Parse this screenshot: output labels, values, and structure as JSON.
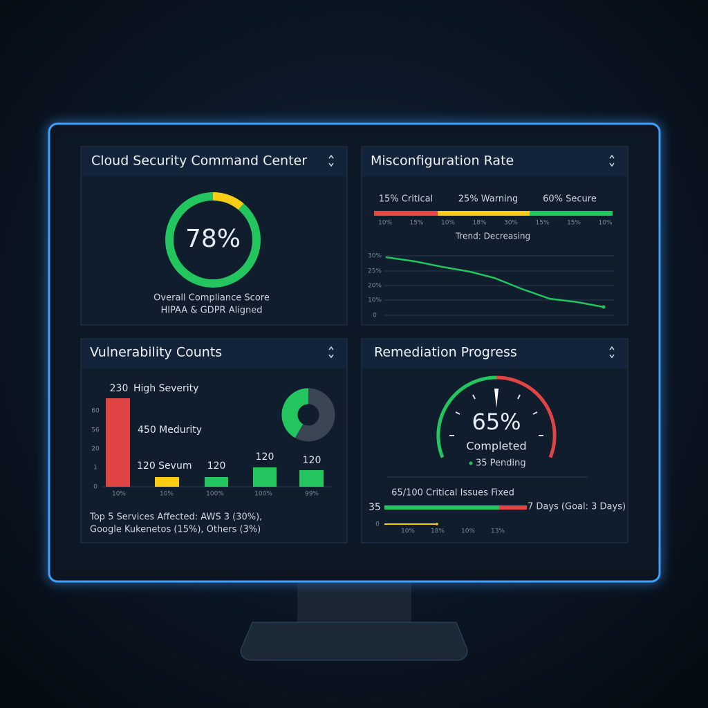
{
  "compliance": {
    "title": "Cloud Security Command Center",
    "score": "78%",
    "caption": [
      "Overall Compliance Score",
      "HIPAA & GDPR Aligned"
    ]
  },
  "misconfiguration": {
    "title": "Misconfiguration Rate",
    "segments": [
      "15% Critical",
      "25% Warning",
      "60% Secure"
    ],
    "scale": [
      "10%",
      "15%",
      "10%",
      "18%",
      "30%",
      "15%",
      "15%",
      "10%"
    ],
    "trend": "Trend: Decreasing",
    "y_labels": [
      "30%",
      "25%",
      "20%",
      "10%",
      "0"
    ]
  },
  "vulnerabilities": {
    "title": "Vulnerability Counts",
    "labels": [
      "230",
      "High Severity",
      "450 Medurity",
      "120 Sevum",
      "120",
      "120",
      "120"
    ],
    "y_labels": [
      "60",
      "56",
      "20",
      "1",
      "0"
    ],
    "x_labels": [
      "10%",
      "10%",
      "100%",
      "100%",
      "99%"
    ],
    "footer": [
      "Top 5 Services Affected: AWS 3 (30%),",
      "Google Kukenetos (15%), Others (3%)"
    ]
  },
  "remediation": {
    "title": "Remediation Progress",
    "percent": "65%",
    "status": "Completed",
    "pending": "35 Pending",
    "fixed": "65/100 Critical Issues Fixed",
    "count": "35",
    "days": "7 Days (Goal: 3 Days)",
    "axis": [
      "0",
      "10%",
      "18%",
      "10%",
      "13%"
    ]
  }
}
